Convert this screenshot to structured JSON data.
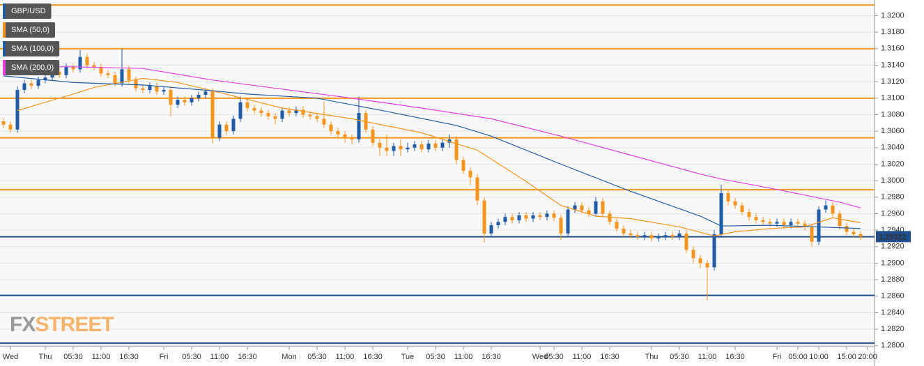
{
  "chart_data": {
    "type": "candlestick",
    "categories": [
      null,
      "Wed",
      null,
      null,
      null,
      null,
      "Thu",
      null,
      null,
      null,
      "05:30",
      null,
      null,
      null,
      "11:00",
      null,
      null,
      null,
      "16:30",
      null,
      null,
      null,
      null,
      "Fri",
      null,
      null,
      null,
      "05:30",
      null,
      null,
      null,
      "11:00",
      null,
      null,
      null,
      "16:30",
      null,
      null,
      null,
      null,
      null,
      "Mon",
      null,
      null,
      null,
      "05:30",
      null,
      null,
      null,
      "11:00",
      null,
      null,
      null,
      "16:30",
      null,
      null,
      null,
      null,
      "Tue",
      null,
      null,
      null,
      "05:30",
      null,
      null,
      null,
      "11:00",
      null,
      null,
      null,
      "16:30",
      null,
      null,
      null,
      null,
      null,
      null,
      "Wed",
      null,
      "05:30",
      null,
      null,
      null,
      "11:00",
      null,
      null,
      null,
      "16:30",
      null,
      null,
      null,
      null,
      null,
      "Thu",
      null,
      null,
      null,
      "05:30",
      null,
      null,
      null,
      "11:00",
      null,
      null,
      null,
      "16:30",
      null,
      null,
      null,
      null,
      null,
      "Fri",
      null,
      null,
      "05:00",
      null,
      null,
      "10:00",
      null,
      null,
      null,
      "15:00",
      null,
      null,
      "20:00"
    ],
    "series": [
      {
        "name": "GBP/USD",
        "type": "candlestick",
        "color": "#1f5ca8",
        "up_color": "#1f5ca8",
        "down_color": "#f7941d",
        "values": [
          [
            1.3072,
            1.3076,
            1.3064,
            1.3068
          ],
          [
            1.3068,
            1.3072,
            1.3058,
            1.3062
          ],
          [
            1.3062,
            1.3114,
            1.3058,
            1.311
          ],
          [
            1.311,
            1.3122,
            1.3106,
            1.3118
          ],
          [
            1.3118,
            1.3122,
            1.3111,
            1.3115
          ],
          [
            1.3115,
            1.3126,
            1.3111,
            1.3122
          ],
          [
            1.3122,
            1.3129,
            1.3118,
            1.3125
          ],
          [
            1.3125,
            1.3136,
            1.3121,
            1.3132
          ],
          [
            1.3132,
            1.3136,
            1.3124,
            1.3128
          ],
          [
            1.3128,
            1.3142,
            1.3124,
            1.3138
          ],
          [
            1.3138,
            1.3142,
            1.3131,
            1.3135
          ],
          [
            1.3135,
            1.3158,
            1.3131,
            1.315
          ],
          [
            1.315,
            1.3154,
            1.3136,
            1.314
          ],
          [
            1.314,
            1.3144,
            1.3134,
            1.3138
          ],
          [
            1.3138,
            1.3142,
            1.3126,
            1.313
          ],
          [
            1.313,
            1.3134,
            1.3124,
            1.3128
          ],
          [
            1.3128,
            1.3132,
            1.3114,
            1.3118
          ],
          [
            1.3118,
            1.316,
            1.3114,
            1.3135
          ],
          [
            1.3135,
            1.3139,
            1.3118,
            1.3122
          ],
          [
            1.3122,
            1.3126,
            1.3108,
            1.3112
          ],
          [
            1.3112,
            1.3116,
            1.3106,
            1.311
          ],
          [
            1.311,
            1.3119,
            1.3106,
            1.3115
          ],
          [
            1.3115,
            1.3119,
            1.3104,
            1.3108
          ],
          [
            1.3108,
            1.3114,
            1.3104,
            1.311
          ],
          [
            1.311,
            1.3114,
            1.3078,
            1.3092
          ],
          [
            1.3092,
            1.3102,
            1.3088,
            1.3098
          ],
          [
            1.3098,
            1.3102,
            1.3091,
            1.3095
          ],
          [
            1.3095,
            1.3104,
            1.3091,
            1.31
          ],
          [
            1.31,
            1.3108,
            1.3096,
            1.3104
          ],
          [
            1.3104,
            1.3112,
            1.31,
            1.3108
          ],
          [
            1.3108,
            1.3112,
            1.3045,
            1.3052
          ],
          [
            1.3052,
            1.3072,
            1.3048,
            1.3068
          ],
          [
            1.3068,
            1.3072,
            1.3056,
            1.306
          ],
          [
            1.306,
            1.3079,
            1.3056,
            1.3075
          ],
          [
            1.3075,
            1.3102,
            1.3071,
            1.3095
          ],
          [
            1.3095,
            1.3099,
            1.3084,
            1.3088
          ],
          [
            1.3088,
            1.3092,
            1.3081,
            1.3085
          ],
          [
            1.3085,
            1.3089,
            1.3078,
            1.3082
          ],
          [
            1.3082,
            1.3086,
            1.3074,
            1.3078
          ],
          [
            1.3078,
            1.3082,
            1.3068,
            1.3075
          ],
          [
            1.3075,
            1.3089,
            1.3071,
            1.3085
          ],
          [
            1.3085,
            1.3089,
            1.3078,
            1.3082
          ],
          [
            1.3082,
            1.309,
            1.3078,
            1.3086
          ],
          [
            1.3086,
            1.309,
            1.3076,
            1.308
          ],
          [
            1.308,
            1.3084,
            1.3074,
            1.3078
          ],
          [
            1.3078,
            1.3082,
            1.3071,
            1.3075
          ],
          [
            1.3075,
            1.3096,
            1.3064,
            1.3068
          ],
          [
            1.3068,
            1.3072,
            1.3056,
            1.306
          ],
          [
            1.306,
            1.3064,
            1.305,
            1.3056
          ],
          [
            1.3056,
            1.306,
            1.3046,
            1.3052
          ],
          [
            1.3052,
            1.3056,
            1.3044,
            1.305
          ],
          [
            1.305,
            1.3102,
            1.3046,
            1.3082
          ],
          [
            1.3082,
            1.3086,
            1.3058,
            1.3062
          ],
          [
            1.3062,
            1.3066,
            1.3042,
            1.3046
          ],
          [
            1.3046,
            1.305,
            1.303,
            1.304
          ],
          [
            1.304,
            1.3056,
            1.303,
            1.3036
          ],
          [
            1.3036,
            1.3046,
            1.303,
            1.3042
          ],
          [
            1.3042,
            1.305,
            1.303,
            1.3038
          ],
          [
            1.3038,
            1.3046,
            1.3034,
            1.304
          ],
          [
            1.304,
            1.3048,
            1.3036,
            1.3044
          ],
          [
            1.3044,
            1.3048,
            1.3034,
            1.3038
          ],
          [
            1.3038,
            1.3049,
            1.3034,
            1.3045
          ],
          [
            1.3045,
            1.3049,
            1.3036,
            1.304
          ],
          [
            1.304,
            1.305,
            1.3036,
            1.3046
          ],
          [
            1.3046,
            1.3056,
            1.304,
            1.305
          ],
          [
            1.305,
            1.3054,
            1.302,
            1.3025
          ],
          [
            1.3025,
            1.3029,
            1.3008,
            1.3012
          ],
          [
            1.3012,
            1.3016,
            1.2995,
            1.3004
          ],
          [
            1.3004,
            1.3008,
            1.297,
            1.2976
          ],
          [
            1.2976,
            1.298,
            1.2925,
            1.2936
          ],
          [
            1.2936,
            1.295,
            1.2932,
            1.2946
          ],
          [
            1.2946,
            1.2954,
            1.2942,
            1.295
          ],
          [
            1.295,
            1.296,
            1.2946,
            1.2956
          ],
          [
            1.2956,
            1.296,
            1.2948,
            1.2952
          ],
          [
            1.2952,
            1.2962,
            1.2948,
            1.2958
          ],
          [
            1.2958,
            1.2962,
            1.295,
            1.2954
          ],
          [
            1.2954,
            1.2962,
            1.295,
            1.2958
          ],
          [
            1.2958,
            1.2962,
            1.2952,
            1.2956
          ],
          [
            1.2956,
            1.2964,
            1.2952,
            1.296
          ],
          [
            1.296,
            1.2964,
            1.2951,
            1.2955
          ],
          [
            1.2955,
            1.2959,
            1.2928,
            1.2936
          ],
          [
            1.2936,
            1.2969,
            1.2932,
            1.2965
          ],
          [
            1.2965,
            1.2974,
            1.2961,
            1.297
          ],
          [
            1.297,
            1.2974,
            1.296,
            1.2964
          ],
          [
            1.2964,
            1.2968,
            1.2956,
            1.296
          ],
          [
            1.296,
            1.298,
            1.2956,
            1.2975
          ],
          [
            1.2975,
            1.2979,
            1.2956,
            1.296
          ],
          [
            1.296,
            1.2964,
            1.2946,
            1.295
          ],
          [
            1.295,
            1.2954,
            1.2938,
            1.2942
          ],
          [
            1.2942,
            1.2946,
            1.2932,
            1.2936
          ],
          [
            1.2936,
            1.294,
            1.293,
            1.2934
          ],
          [
            1.2934,
            1.2938,
            1.2928,
            1.2932
          ],
          [
            1.2932,
            1.2938,
            1.2928,
            1.2934
          ],
          [
            1.2934,
            1.2938,
            1.2926,
            1.293
          ],
          [
            1.293,
            1.2936,
            1.2926,
            1.2932
          ],
          [
            1.2932,
            1.2938,
            1.2928,
            1.2934
          ],
          [
            1.2934,
            1.2938,
            1.2928,
            1.2932
          ],
          [
            1.2932,
            1.294,
            1.2928,
            1.2936
          ],
          [
            1.2936,
            1.294,
            1.2912,
            1.2916
          ],
          [
            1.2916,
            1.292,
            1.29,
            1.2906
          ],
          [
            1.2906,
            1.291,
            1.2894,
            1.29
          ],
          [
            1.29,
            1.2904,
            1.2855,
            1.2895
          ],
          [
            1.2895,
            1.294,
            1.2891,
            1.2935
          ],
          [
            1.2935,
            1.2995,
            1.2931,
            1.2985
          ],
          [
            1.2985,
            1.2989,
            1.297,
            1.2975
          ],
          [
            1.2975,
            1.2979,
            1.2966,
            1.297
          ],
          [
            1.297,
            1.2974,
            1.2958,
            1.2962
          ],
          [
            1.2962,
            1.2966,
            1.2952,
            1.2956
          ],
          [
            1.2956,
            1.296,
            1.2948,
            1.2952
          ],
          [
            1.2952,
            1.2956,
            1.2946,
            1.295
          ],
          [
            1.295,
            1.2954,
            1.2944,
            1.2948
          ],
          [
            1.2948,
            1.2954,
            1.2944,
            1.295
          ],
          [
            1.295,
            1.2954,
            1.2942,
            1.2946
          ],
          [
            1.2946,
            1.2954,
            1.2942,
            1.295
          ],
          [
            1.295,
            1.2954,
            1.2944,
            1.2948
          ],
          [
            1.2948,
            1.2952,
            1.294,
            1.2944
          ],
          [
            1.2944,
            1.2948,
            1.292,
            1.2926
          ],
          [
            1.2926,
            1.2969,
            1.2922,
            1.2965
          ],
          [
            1.2965,
            1.2976,
            1.2961,
            1.297
          ],
          [
            1.297,
            1.2974,
            1.2956,
            1.296
          ],
          [
            1.296,
            1.2964,
            1.2941,
            1.2945
          ],
          [
            1.2945,
            1.2949,
            1.2934,
            1.2938
          ],
          [
            1.2938,
            1.2942,
            1.2931,
            1.2935
          ],
          [
            1.2935,
            1.2939,
            1.2928,
            1.2932
          ],
          null
        ]
      },
      {
        "name": "SMA (50,0)",
        "type": "line",
        "color": "#f7941d",
        "x": [
          2,
          10,
          13,
          20,
          25,
          30,
          40,
          50,
          60,
          68,
          75,
          80,
          85,
          90,
          97,
          102,
          105,
          110,
          115,
          119,
          123
        ],
        "values": [
          1.3085,
          1.3105,
          1.3113,
          1.3124,
          1.3119,
          1.3109,
          1.3088,
          1.3075,
          1.3058,
          1.3037,
          1.2999,
          1.297,
          1.2957,
          1.2954,
          1.2944,
          1.2933,
          1.2938,
          1.2942,
          1.2944,
          1.2955,
          1.2949
        ]
      },
      {
        "name": "SMA (100,0)",
        "type": "line",
        "color": "#1f5ca8",
        "x": [
          0,
          10,
          20,
          30,
          35,
          45,
          55,
          65,
          70,
          80,
          90,
          100,
          103,
          110,
          120,
          123
        ],
        "values": [
          1.3127,
          1.3119,
          1.3116,
          1.3109,
          1.3105,
          1.31,
          1.3084,
          1.3067,
          1.3054,
          1.302,
          1.2987,
          1.2957,
          1.2945,
          1.2946,
          1.2943,
          1.2942
        ]
      },
      {
        "name": "SMA (200,0)",
        "type": "line",
        "color": "#e83ee8",
        "x": [
          0,
          10,
          20,
          30,
          40,
          50,
          60,
          70,
          80,
          90,
          100,
          103,
          110,
          120,
          123
        ],
        "values": [
          1.3138,
          1.3138,
          1.3136,
          1.3122,
          1.3111,
          1.31,
          1.3088,
          1.3075,
          1.3054,
          1.3031,
          1.3008,
          1.3002,
          1.2991,
          1.2974,
          1.2967
        ]
      }
    ],
    "levels": [
      {
        "value": 1.3213,
        "color": "#f7941d"
      },
      {
        "value": 1.316,
        "color": "#f7941d"
      },
      {
        "value": 1.31,
        "color": "#f7941d"
      },
      {
        "value": 1.3052,
        "color": "#f7941d"
      },
      {
        "value": 1.2989,
        "color": "#f7941d"
      },
      {
        "value": 1.2932,
        "color": "#1f4e8c"
      },
      {
        "value": 1.2861,
        "color": "#1f4e8c"
      },
      {
        "value": 1.2803,
        "color": "#1f4e8c"
      }
    ],
    "last_price": 1.29322,
    "ylim": [
      1.2799,
      1.3219
    ],
    "yticks": [
      {
        "value": 1.28,
        "label": "1.2800"
      },
      {
        "value": 1.282,
        "label": "1.2820"
      },
      {
        "value": 1.284,
        "label": "1.2840"
      },
      {
        "value": 1.286,
        "label": "1.2860"
      },
      {
        "value": 1.288,
        "label": "1.2880"
      },
      {
        "value": 1.29,
        "label": "1.2900"
      },
      {
        "value": 1.292,
        "label": "1.2920"
      },
      {
        "value": 1.294,
        "label": "1.2940"
      },
      {
        "value": 1.296,
        "label": "1.2960"
      },
      {
        "value": 1.298,
        "label": "1.2980"
      },
      {
        "value": 1.3,
        "label": "1.3000"
      },
      {
        "value": 1.302,
        "label": "1.3020"
      },
      {
        "value": 1.304,
        "label": "1.3040"
      },
      {
        "value": 1.306,
        "label": "1.3060"
      },
      {
        "value": 1.308,
        "label": "1.3080"
      },
      {
        "value": 1.31,
        "label": "1.3100"
      },
      {
        "value": 1.312,
        "label": "1.3120"
      },
      {
        "value": 1.314,
        "label": "1.3140"
      },
      {
        "value": 1.316,
        "label": "1.3160"
      },
      {
        "value": 1.318,
        "label": "1.3180"
      },
      {
        "value": 1.32,
        "label": "1.3200"
      }
    ],
    "grid": true,
    "legend": "top-left",
    "watermark": [
      "FX",
      "STREET"
    ]
  }
}
